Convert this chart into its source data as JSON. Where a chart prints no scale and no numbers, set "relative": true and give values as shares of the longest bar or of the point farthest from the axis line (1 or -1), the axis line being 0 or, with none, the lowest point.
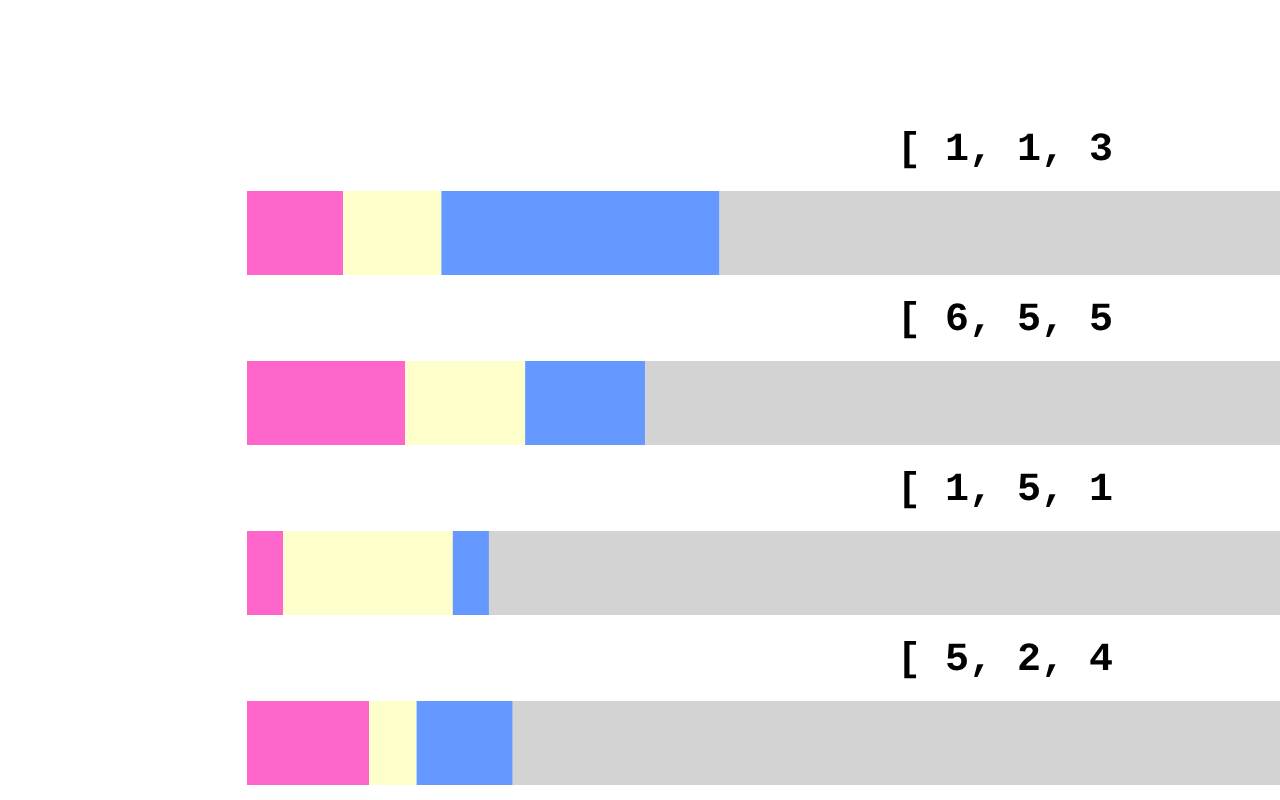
{
  "chart_data": {
    "type": "bar",
    "orientation": "horizontal",
    "stacked": true,
    "relative": true,
    "grid": false,
    "categories": [
      "[ 1, 1, 3",
      "[ 6, 5, 5",
      "[ 1, 5, 1",
      "[ 5, 2, 4"
    ],
    "series": [
      {
        "color": "#ff66cc",
        "values": [
          0.093,
          0.153,
          0.035,
          0.118
        ]
      },
      {
        "color": "#ffffcc",
        "values": [
          0.095,
          0.116,
          0.164,
          0.046
        ]
      },
      {
        "color": "#6699ff",
        "values": [
          0.269,
          0.116,
          0.035,
          0.093
        ]
      },
      {
        "color": "#d3d3d3",
        "values": [
          0.543,
          0.615,
          0.766,
          0.743
        ]
      }
    ]
  }
}
